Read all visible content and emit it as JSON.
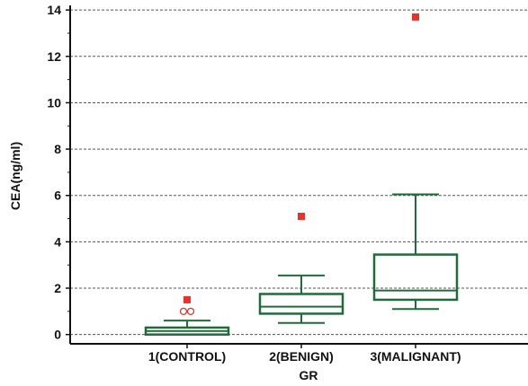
{
  "chart_data": {
    "type": "box",
    "title": "",
    "xlabel": "GR",
    "ylabel": "CEA(ng/ml)",
    "ylim": [
      -0.4,
      14.2
    ],
    "yticks": [
      0,
      2,
      4,
      6,
      8,
      10,
      12,
      14
    ],
    "ytick_labels": [
      "0",
      "2",
      "4",
      "6",
      "8",
      "10",
      "12",
      "14"
    ],
    "grid": "horizontal dashed",
    "categories": [
      "1(CONTROL)",
      "2(BENIGN)",
      "3(MALIGNANT)"
    ],
    "boxes": [
      {
        "category": "1(CONTROL)",
        "whisker_low": 0.0,
        "q1": 0.0,
        "median": 0.15,
        "q3": 0.3,
        "whisker_high": 0.6,
        "max_marker": 1.5,
        "outliers": [
          1.0,
          1.0
        ]
      },
      {
        "category": "2(BENIGN)",
        "whisker_low": 0.5,
        "q1": 0.9,
        "median": 1.2,
        "q3": 1.75,
        "whisker_high": 2.55,
        "max_marker": 5.1,
        "outliers": []
      },
      {
        "category": "3(MALIGNANT)",
        "whisker_low": 1.1,
        "q1": 1.5,
        "median": 1.9,
        "q3": 3.45,
        "whisker_high": 6.05,
        "max_marker": 13.7,
        "outliers": []
      }
    ],
    "colors": {
      "box": "#1f6b3a",
      "max_marker": "#e8322b",
      "outlier": "#e8322b",
      "grid": "#555555",
      "axis": "#111111"
    }
  }
}
